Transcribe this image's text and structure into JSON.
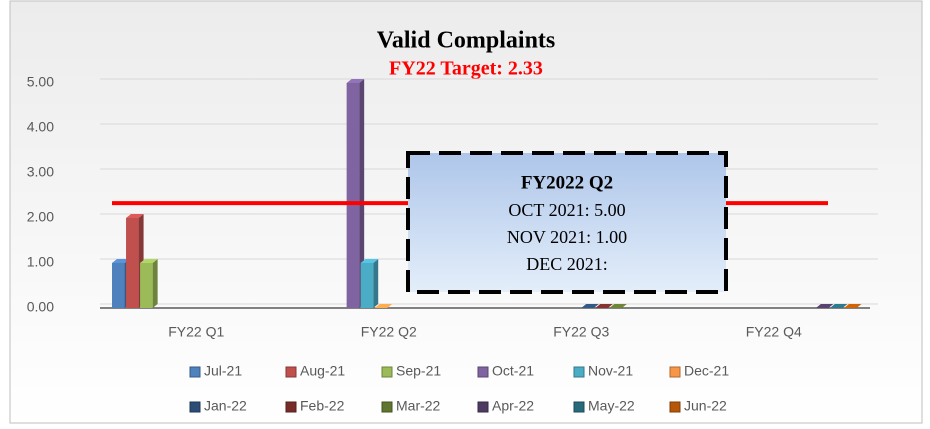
{
  "chart_data": {
    "type": "bar3d",
    "title": "Valid Complaints",
    "target": {
      "label": "FY22 Target: 2.33",
      "value": 2.33,
      "color": "#ff0000"
    },
    "categories": [
      "FY22 Q1",
      "FY22 Q2",
      "FY22 Q3",
      "FY22 Q4"
    ],
    "series": [
      {
        "name": "Jul-21",
        "color": "#4f81bd",
        "values": [
          1,
          null,
          null,
          null
        ]
      },
      {
        "name": "Aug-21",
        "color": "#c0504d",
        "values": [
          2,
          null,
          null,
          null
        ]
      },
      {
        "name": "Sep-21",
        "color": "#9bbb59",
        "values": [
          1,
          null,
          null,
          null
        ]
      },
      {
        "name": "Oct-21",
        "color": "#8064a2",
        "values": [
          null,
          5,
          null,
          null
        ]
      },
      {
        "name": "Nov-21",
        "color": "#4bacc6",
        "values": [
          null,
          1,
          null,
          null
        ]
      },
      {
        "name": "Dec-21",
        "color": "#f79646",
        "values": [
          null,
          0,
          null,
          null
        ]
      },
      {
        "name": "Jan-22",
        "color": "#2c4d75",
        "values": [
          null,
          null,
          0,
          null
        ]
      },
      {
        "name": "Feb-22",
        "color": "#772c2a",
        "values": [
          null,
          null,
          0,
          null
        ]
      },
      {
        "name": "Mar-22",
        "color": "#5f7530",
        "values": [
          null,
          null,
          0,
          null
        ]
      },
      {
        "name": "Apr-22",
        "color": "#4d3b62",
        "values": [
          null,
          null,
          null,
          0
        ]
      },
      {
        "name": "May-22",
        "color": "#276a7c",
        "values": [
          null,
          null,
          null,
          0
        ]
      },
      {
        "name": "Jun-22",
        "color": "#b65708",
        "values": [
          null,
          null,
          null,
          0
        ]
      }
    ],
    "ylim": [
      0,
      5.5
    ],
    "yticks": [
      {
        "value": 0,
        "label": "0.00"
      },
      {
        "value": 1,
        "label": "1.00"
      },
      {
        "value": 2,
        "label": "2.00"
      },
      {
        "value": 3,
        "label": "3.00"
      },
      {
        "value": 4,
        "label": "4.00"
      },
      {
        "value": 5,
        "label": "5.00"
      }
    ],
    "grid": true,
    "annotation": {
      "title": "FY2022 Q2",
      "lines": [
        "OCT 2021: 5.00",
        "NOV 2021: 1.00",
        "DEC 2021:"
      ]
    }
  }
}
